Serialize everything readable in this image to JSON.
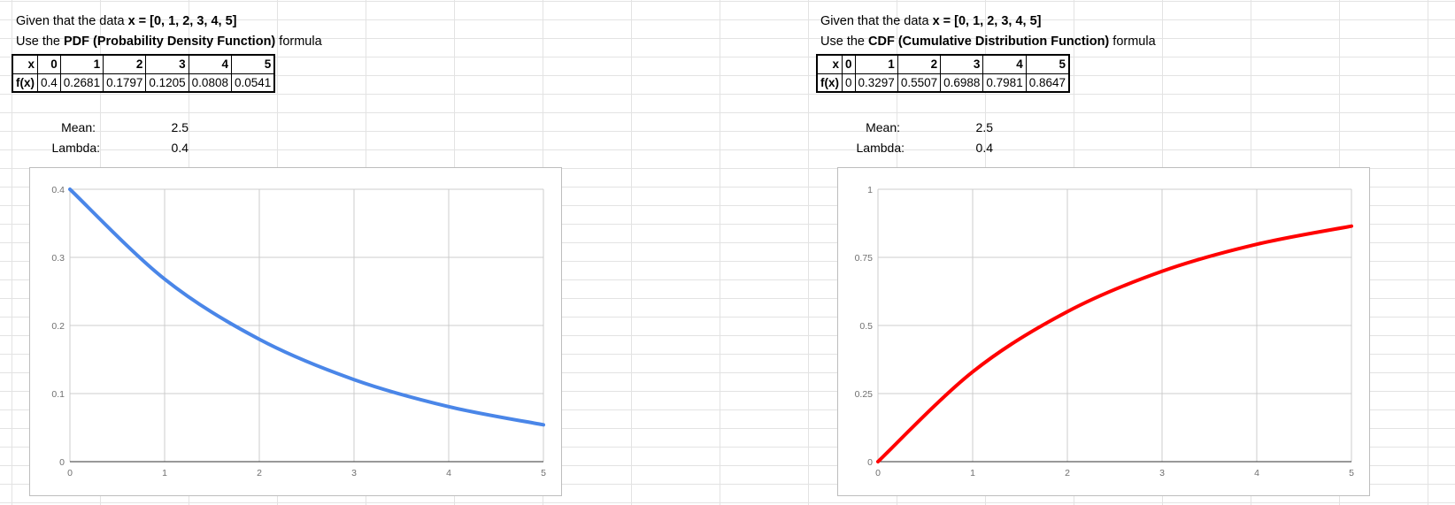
{
  "panels": [
    {
      "id": "pdf",
      "line1": {
        "prefix": "Given that the data ",
        "bold": "x = [0, 1, 2, 3, 4, 5]",
        "suffix": ""
      },
      "line2": {
        "prefix": "Use the ",
        "bold": "PDF (Probability Density Function)",
        "suffix": " formula"
      },
      "table": {
        "row1": [
          "x",
          "0",
          "1",
          "2",
          "3",
          "4",
          "5"
        ],
        "row2": [
          "f(x)",
          "0.4",
          "0.2681",
          "0.1797",
          "0.1205",
          "0.0808",
          "0.0541"
        ]
      },
      "mean_label": "Mean:",
      "mean_value": "2.5",
      "lambda_label": "Lambda:",
      "lambda_value": "0.4",
      "line_color": "#4a86e8"
    },
    {
      "id": "cdf",
      "line1": {
        "prefix": "Given that the data ",
        "bold": "x = [0, 1, 2, 3, 4, 5]",
        "suffix": ""
      },
      "line2": {
        "prefix": "Use the ",
        "bold": "CDF (Cumulative Distribution Function)",
        "suffix": " formula"
      },
      "table": {
        "row1": [
          "x",
          "0",
          "1",
          "2",
          "3",
          "4",
          "5"
        ],
        "row2": [
          "f(x)",
          "0",
          "0.3297",
          "0.5507",
          "0.6988",
          "0.7981",
          "0.8647"
        ]
      },
      "mean_label": "Mean:",
      "mean_value": "2.5",
      "lambda_label": "Lambda:",
      "lambda_value": "0.4",
      "line_color": "#ff0000"
    }
  ],
  "chart_data": [
    {
      "type": "line",
      "x": [
        0,
        1,
        2,
        3,
        4,
        5
      ],
      "values": [
        0.4,
        0.2681,
        0.1797,
        0.1205,
        0.0808,
        0.0541
      ],
      "xlim": [
        0,
        5
      ],
      "ylim": [
        0,
        0.4
      ],
      "x_ticks": [
        "0",
        "1",
        "2",
        "3",
        "4",
        "5"
      ],
      "y_ticks": [
        "0",
        "0.1",
        "0.2",
        "0.3",
        "0.4"
      ],
      "grid": true,
      "color": "#4a86e8"
    },
    {
      "type": "line",
      "x": [
        0,
        1,
        2,
        3,
        4,
        5
      ],
      "values": [
        0,
        0.3297,
        0.5507,
        0.6988,
        0.7981,
        0.8647
      ],
      "xlim": [
        0,
        5
      ],
      "ylim": [
        0,
        1
      ],
      "x_ticks": [
        "0",
        "1",
        "2",
        "3",
        "4",
        "5"
      ],
      "y_ticks": [
        "0",
        "0.25",
        "0.5",
        "0.75",
        "1"
      ],
      "grid": true,
      "color": "#ff0000"
    }
  ]
}
